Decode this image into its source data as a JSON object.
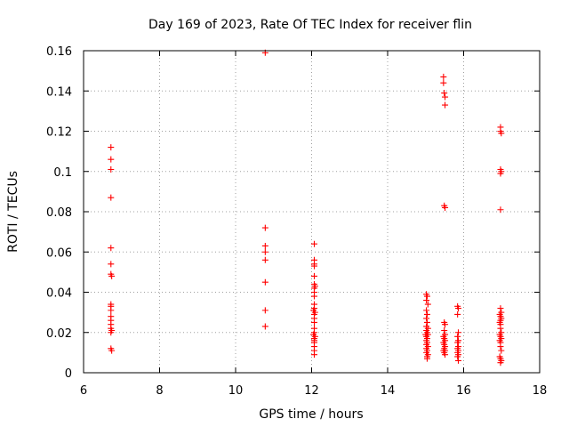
{
  "chart_data": {
    "type": "scatter",
    "title": "Day 169 of 2023, Rate Of TEC Index for receiver flin",
    "xlabel": "GPS time / hours",
    "ylabel": "ROTI / TECUs",
    "xlim": [
      6,
      18
    ],
    "ylim": [
      0,
      0.16
    ],
    "xticks": [
      6,
      8,
      10,
      12,
      14,
      16,
      18
    ],
    "yticks": [
      0,
      0.02,
      0.04,
      0.06,
      0.08,
      0.1,
      0.12,
      0.14,
      0.16
    ],
    "grid": true,
    "marker": "+",
    "color": "#ff0000",
    "series": [
      {
        "name": "ROTI",
        "points": [
          [
            6.72,
            0.112
          ],
          [
            6.72,
            0.106
          ],
          [
            6.72,
            0.101
          ],
          [
            6.72,
            0.087
          ],
          [
            6.72,
            0.062
          ],
          [
            6.72,
            0.054
          ],
          [
            6.72,
            0.049
          ],
          [
            6.74,
            0.048
          ],
          [
            6.72,
            0.034
          ],
          [
            6.72,
            0.033
          ],
          [
            6.72,
            0.031
          ],
          [
            6.72,
            0.028
          ],
          [
            6.72,
            0.026
          ],
          [
            6.72,
            0.024
          ],
          [
            6.72,
            0.022
          ],
          [
            6.74,
            0.021
          ],
          [
            6.72,
            0.02
          ],
          [
            6.72,
            0.012
          ],
          [
            6.74,
            0.011
          ],
          [
            10.78,
            0.159
          ],
          [
            10.78,
            0.072
          ],
          [
            10.78,
            0.063
          ],
          [
            10.78,
            0.06
          ],
          [
            10.78,
            0.056
          ],
          [
            10.78,
            0.045
          ],
          [
            10.78,
            0.031
          ],
          [
            10.78,
            0.023
          ],
          [
            12.07,
            0.064
          ],
          [
            12.07,
            0.056
          ],
          [
            12.07,
            0.054
          ],
          [
            12.07,
            0.053
          ],
          [
            12.07,
            0.048
          ],
          [
            12.07,
            0.044
          ],
          [
            12.09,
            0.043
          ],
          [
            12.07,
            0.042
          ],
          [
            12.07,
            0.04
          ],
          [
            12.07,
            0.038
          ],
          [
            12.07,
            0.034
          ],
          [
            12.07,
            0.032
          ],
          [
            12.05,
            0.031
          ],
          [
            12.09,
            0.03
          ],
          [
            12.07,
            0.029
          ],
          [
            12.07,
            0.027
          ],
          [
            12.07,
            0.025
          ],
          [
            12.07,
            0.022
          ],
          [
            12.07,
            0.02
          ],
          [
            12.05,
            0.019
          ],
          [
            12.09,
            0.018
          ],
          [
            12.07,
            0.017
          ],
          [
            12.07,
            0.016
          ],
          [
            12.07,
            0.015
          ],
          [
            12.07,
            0.013
          ],
          [
            12.07,
            0.011
          ],
          [
            12.07,
            0.009
          ],
          [
            15.02,
            0.039
          ],
          [
            15.04,
            0.038
          ],
          [
            15.02,
            0.036
          ],
          [
            15.06,
            0.034
          ],
          [
            15.02,
            0.031
          ],
          [
            15.04,
            0.029
          ],
          [
            15.02,
            0.027
          ],
          [
            15.04,
            0.025
          ],
          [
            15.02,
            0.023
          ],
          [
            15.06,
            0.022
          ],
          [
            15.02,
            0.021
          ],
          [
            15.04,
            0.02
          ],
          [
            15.0,
            0.019
          ],
          [
            15.06,
            0.019
          ],
          [
            15.02,
            0.018
          ],
          [
            15.04,
            0.017
          ],
          [
            15.02,
            0.016
          ],
          [
            15.04,
            0.015
          ],
          [
            15.02,
            0.014
          ],
          [
            15.06,
            0.013
          ],
          [
            15.02,
            0.012
          ],
          [
            15.04,
            0.011
          ],
          [
            15.02,
            0.01
          ],
          [
            15.06,
            0.009
          ],
          [
            15.04,
            0.008
          ],
          [
            15.04,
            0.007
          ],
          [
            15.47,
            0.147
          ],
          [
            15.47,
            0.144
          ],
          [
            15.49,
            0.139
          ],
          [
            15.51,
            0.137
          ],
          [
            15.51,
            0.133
          ],
          [
            15.49,
            0.083
          ],
          [
            15.51,
            0.082
          ],
          [
            15.49,
            0.025
          ],
          [
            15.51,
            0.024
          ],
          [
            15.49,
            0.021
          ],
          [
            15.51,
            0.019
          ],
          [
            15.47,
            0.018
          ],
          [
            15.49,
            0.017
          ],
          [
            15.51,
            0.016
          ],
          [
            15.47,
            0.015
          ],
          [
            15.49,
            0.014
          ],
          [
            15.51,
            0.013
          ],
          [
            15.49,
            0.012
          ],
          [
            15.51,
            0.011
          ],
          [
            15.47,
            0.011
          ],
          [
            15.49,
            0.01
          ],
          [
            15.51,
            0.009
          ],
          [
            15.84,
            0.033
          ],
          [
            15.86,
            0.032
          ],
          [
            15.84,
            0.029
          ],
          [
            15.86,
            0.02
          ],
          [
            15.84,
            0.018
          ],
          [
            15.86,
            0.016
          ],
          [
            15.84,
            0.015
          ],
          [
            15.86,
            0.013
          ],
          [
            15.84,
            0.012
          ],
          [
            15.86,
            0.011
          ],
          [
            15.84,
            0.01
          ],
          [
            15.86,
            0.009
          ],
          [
            15.84,
            0.008
          ],
          [
            15.86,
            0.006
          ],
          [
            16.97,
            0.122
          ],
          [
            16.97,
            0.12
          ],
          [
            16.99,
            0.119
          ],
          [
            16.97,
            0.101
          ],
          [
            16.99,
            0.1
          ],
          [
            16.97,
            0.099
          ],
          [
            16.97,
            0.081
          ],
          [
            16.97,
            0.032
          ],
          [
            16.99,
            0.03
          ],
          [
            16.95,
            0.029
          ],
          [
            16.97,
            0.028
          ],
          [
            16.99,
            0.027
          ],
          [
            16.97,
            0.026
          ],
          [
            16.95,
            0.025
          ],
          [
            16.97,
            0.024
          ],
          [
            16.97,
            0.022
          ],
          [
            16.99,
            0.02
          ],
          [
            16.95,
            0.019
          ],
          [
            16.97,
            0.018
          ],
          [
            16.99,
            0.017
          ],
          [
            16.95,
            0.016
          ],
          [
            16.97,
            0.015
          ],
          [
            16.97,
            0.013
          ],
          [
            16.99,
            0.011
          ],
          [
            16.95,
            0.008
          ],
          [
            16.97,
            0.007
          ],
          [
            16.99,
            0.006
          ],
          [
            16.97,
            0.005
          ]
        ]
      }
    ]
  }
}
